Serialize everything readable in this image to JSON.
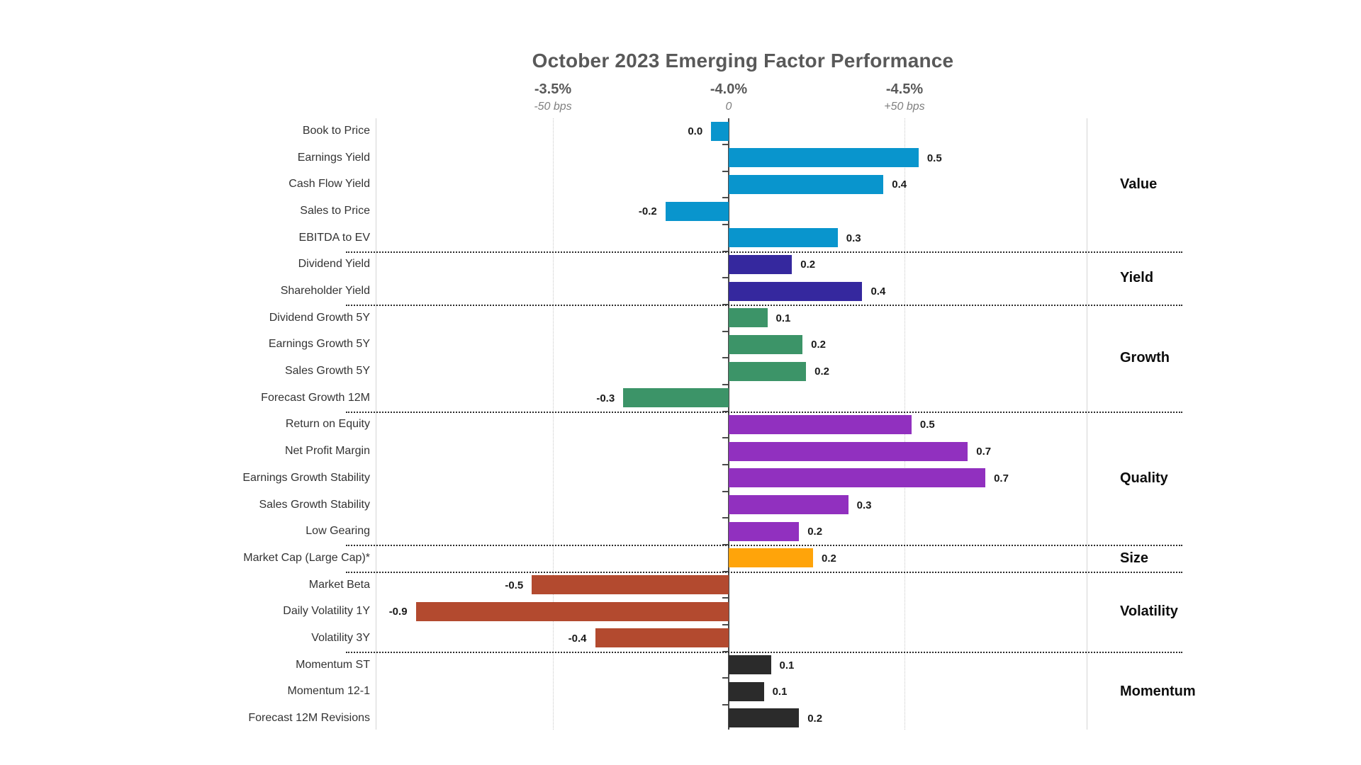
{
  "title": "October 2023 Emerging Factor Performance",
  "axis": {
    "percent_labels": [
      "-3.5%",
      "-4.0%",
      "-4.5%"
    ],
    "bps_labels": [
      "-50 bps",
      "0",
      "+50 bps"
    ]
  },
  "colors": {
    "value": "#0995cd",
    "yield": "#35289e",
    "growth": "#3c9468",
    "quality": "#9130bf",
    "size": "#ffa40a",
    "volatility": "#b34a2f",
    "momentum": "#2b2b2b",
    "title_text": "#595959",
    "percent_text": "#595959",
    "bps_text": "#7f7f7f",
    "gridline": "#c9c9c9",
    "zero_axis": "#4a4a4a",
    "separator": "#2b2b2b",
    "factor_label_text": "#333333",
    "value_label_text": "#1a1a1a",
    "group_label_text": "#0d0d0d"
  },
  "chart_data": {
    "type": "bar",
    "orientation": "horizontal",
    "title": "October 2023 Emerging Factor Performance",
    "xlabel": "",
    "ylabel": "",
    "x_axis": {
      "unit": "bps",
      "tick_values_bps": [
        -50,
        0,
        50
      ],
      "tick_labels": [
        "-50 bps",
        "0",
        "+50 bps"
      ],
      "secondary_tick_labels": [
        "-3.5%",
        "-4.0%",
        "-4.5%"
      ],
      "range_bps": [
        -105,
        107
      ],
      "grid": true
    },
    "legend": "none",
    "groups": [
      {
        "name": "Value",
        "color_key": "value",
        "items": [
          {
            "label": "Book to Price",
            "value": 0.0,
            "display": "0.0",
            "render_bps": -5
          },
          {
            "label": "Earnings Yield",
            "value": 0.5,
            "display": "0.5",
            "render_bps": 54
          },
          {
            "label": "Cash Flow Yield",
            "value": 0.4,
            "display": "0.4",
            "render_bps": 44
          },
          {
            "label": "Sales to Price",
            "value": -0.2,
            "display": "-0.2",
            "render_bps": -18
          },
          {
            "label": "EBITDA to EV",
            "value": 0.3,
            "display": "0.3",
            "render_bps": 31
          }
        ]
      },
      {
        "name": "Yield",
        "color_key": "yield",
        "items": [
          {
            "label": "Dividend Yield",
            "value": 0.2,
            "display": "0.2",
            "render_bps": 18
          },
          {
            "label": "Shareholder Yield",
            "value": 0.4,
            "display": "0.4",
            "render_bps": 38
          }
        ]
      },
      {
        "name": "Growth",
        "color_key": "growth",
        "items": [
          {
            "label": "Dividend Growth 5Y",
            "value": 0.1,
            "display": "0.1",
            "render_bps": 11
          },
          {
            "label": "Earnings Growth 5Y",
            "value": 0.2,
            "display": "0.2",
            "render_bps": 21
          },
          {
            "label": "Sales Growth 5Y",
            "value": 0.2,
            "display": "0.2",
            "render_bps": 22
          },
          {
            "label": "Forecast Growth 12M",
            "value": -0.3,
            "display": "-0.3",
            "render_bps": -30
          }
        ]
      },
      {
        "name": "Quality",
        "color_key": "quality",
        "items": [
          {
            "label": "Return on Equity",
            "value": 0.5,
            "display": "0.5",
            "render_bps": 52
          },
          {
            "label": "Net Profit Margin",
            "value": 0.7,
            "display": "0.7",
            "render_bps": 68
          },
          {
            "label": "Earnings Growth Stability",
            "value": 0.7,
            "display": "0.7",
            "render_bps": 73
          },
          {
            "label": "Sales Growth Stability",
            "value": 0.3,
            "display": "0.3",
            "render_bps": 34
          },
          {
            "label": "Low Gearing",
            "value": 0.2,
            "display": "0.2",
            "render_bps": 20
          }
        ]
      },
      {
        "name": "Size",
        "color_key": "size",
        "items": [
          {
            "label": "Market Cap (Large Cap)*",
            "value": 0.2,
            "display": "0.2",
            "render_bps": 24
          }
        ]
      },
      {
        "name": "Volatility",
        "color_key": "volatility",
        "items": [
          {
            "label": "Market Beta",
            "value": -0.5,
            "display": "-0.5",
            "render_bps": -56
          },
          {
            "label": "Daily Volatility 1Y",
            "value": -0.9,
            "display": "-0.9",
            "render_bps": -89
          },
          {
            "label": "Volatility 3Y",
            "value": -0.4,
            "display": "-0.4",
            "render_bps": -38
          }
        ]
      },
      {
        "name": "Momentum",
        "color_key": "momentum",
        "items": [
          {
            "label": "Momentum ST",
            "value": 0.1,
            "display": "0.1",
            "render_bps": 12
          },
          {
            "label": "Momentum 12-1",
            "value": 0.1,
            "display": "0.1",
            "render_bps": 10
          },
          {
            "label": "Forecast 12M Revisions",
            "value": 0.2,
            "display": "0.2",
            "render_bps": 20
          }
        ]
      }
    ]
  }
}
